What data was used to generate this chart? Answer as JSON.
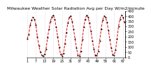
{
  "title": "Milwaukee Weather Solar Radiation Avg per Day W/m2/minute",
  "x_values": [
    1,
    2,
    3,
    4,
    5,
    6,
    7,
    8,
    9,
    10,
    11,
    12,
    13,
    14,
    15,
    16,
    17,
    18,
    19,
    20,
    21,
    22,
    23,
    24,
    25,
    26,
    27,
    28,
    29,
    30,
    31,
    32,
    33,
    34,
    35,
    36,
    37,
    38,
    39,
    40,
    41,
    42,
    43,
    44,
    45,
    46,
    47,
    48,
    49,
    50,
    51,
    52,
    53,
    54,
    55,
    56,
    57,
    58,
    59,
    60,
    61,
    62,
    63,
    64,
    65,
    66,
    67,
    68
  ],
  "y_values": [
    180,
    220,
    310,
    360,
    390,
    370,
    310,
    200,
    110,
    50,
    20,
    10,
    30,
    80,
    190,
    270,
    350,
    390,
    410,
    370,
    290,
    200,
    100,
    30,
    10,
    40,
    130,
    240,
    330,
    390,
    400,
    350,
    270,
    180,
    90,
    20,
    10,
    60,
    170,
    290,
    370,
    410,
    390,
    330,
    250,
    160,
    80,
    20,
    15,
    55,
    160,
    270,
    360,
    400,
    390,
    340,
    260,
    170,
    90,
    25,
    20,
    70,
    180,
    300,
    370,
    410,
    390,
    340
  ],
  "line_color": "#dd0000",
  "line_style": "--",
  "marker": ".",
  "marker_color": "#000000",
  "marker_size": 1.8,
  "background_color": "#ffffff",
  "grid_color": "#bbbbbb",
  "grid_style": ":",
  "ylim": [
    0,
    450
  ],
  "yticks": [
    0,
    50,
    100,
    150,
    200,
    250,
    300,
    350,
    400,
    450
  ],
  "ytick_labels": [
    "0",
    "50",
    "100",
    "150",
    "200",
    "250",
    "300",
    "350",
    "400",
    "450"
  ],
  "title_fontsize": 4.5,
  "tick_fontsize": 3.5,
  "linewidth": 0.7,
  "n_points": 68
}
